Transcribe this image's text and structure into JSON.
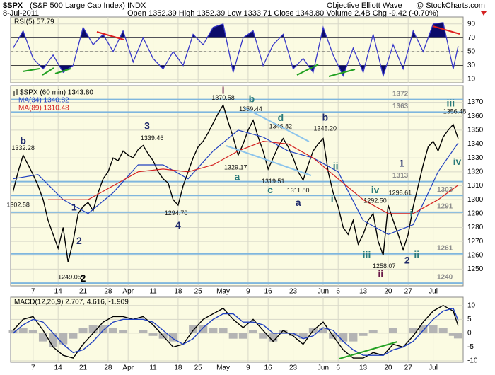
{
  "header": {
    "symbol": "$SPX",
    "name": "(S&P 500 Large Cap Index) INDX",
    "source": "Objective Elliott Wave",
    "site": "@ StockCharts.com",
    "date": "8-Jul-2011",
    "quote": "Open 1352.39 High 1352.39 Low 1333.71 Close 1343.80 Volume 2.4B Chg -9.42 (-0.70%)"
  },
  "chart_data": [
    {
      "type": "rsi",
      "title": "RSI(5) 57.79",
      "xlim": [
        -0.5,
        90
      ],
      "ylim": [
        5,
        100
      ],
      "yticks": [
        10,
        30,
        50,
        70,
        90
      ],
      "bands": [
        30,
        70
      ],
      "color": "#3838c8",
      "fill_color": "#0b0b6a",
      "x": [
        0,
        2,
        4,
        6,
        8,
        10,
        12,
        14,
        16,
        18,
        20,
        22,
        24,
        26,
        28,
        30,
        32,
        34,
        36,
        38,
        40,
        42,
        44,
        46,
        48,
        50,
        52,
        54,
        56,
        58,
        60,
        62,
        64,
        66,
        68,
        70,
        72,
        74,
        76,
        78,
        80,
        82,
        84,
        86,
        88,
        89
      ],
      "values": [
        55,
        80,
        40,
        25,
        45,
        20,
        30,
        85,
        60,
        75,
        50,
        80,
        35,
        70,
        40,
        25,
        50,
        30,
        75,
        60,
        85,
        90,
        20,
        70,
        80,
        30,
        60,
        75,
        25,
        40,
        20,
        85,
        45,
        15,
        55,
        20,
        75,
        15,
        60,
        25,
        80,
        50,
        90,
        92,
        25,
        57.79
      ]
    },
    {
      "type": "line",
      "xlim": [
        -0.5,
        90
      ],
      "ylim": [
        1238,
        1382
      ],
      "yticks": [
        1250,
        1260,
        1270,
        1280,
        1290,
        1300,
        1310,
        1320,
        1330,
        1340,
        1350,
        1360,
        1370
      ],
      "xticks": [
        {
          "value": 4,
          "label": "7"
        },
        {
          "value": 9,
          "label": "14"
        },
        {
          "value": 14,
          "label": "21"
        },
        {
          "value": 19,
          "label": "28"
        },
        {
          "value": 23,
          "label": "Apr"
        },
        {
          "value": 28,
          "label": "11"
        },
        {
          "value": 33,
          "label": "18"
        },
        {
          "value": 37,
          "label": "25"
        },
        {
          "value": 42,
          "label": "May"
        },
        {
          "value": 47,
          "label": "9"
        },
        {
          "value": 51,
          "label": "16"
        },
        {
          "value": 56,
          "label": "23"
        },
        {
          "value": 62,
          "label": "Jun"
        },
        {
          "value": 65,
          "label": "6"
        },
        {
          "value": 70,
          "label": "13"
        },
        {
          "value": 75,
          "label": "20"
        },
        {
          "value": 79,
          "label": "27"
        },
        {
          "value": 84,
          "label": "Jul"
        }
      ],
      "series": [
        {
          "name": "$SPX (60 min) 1343.80",
          "color": "#000000",
          "x": [
            0,
            1,
            2,
            3,
            4,
            5,
            6,
            7,
            8,
            9,
            10,
            11,
            12,
            13,
            14,
            15,
            16,
            17,
            18,
            19,
            20,
            21,
            22,
            23,
            24,
            25,
            26,
            27,
            28,
            29,
            30,
            31,
            32,
            33,
            34,
            35,
            36,
            37,
            38,
            39,
            40,
            41,
            42,
            43,
            44,
            45,
            46,
            47,
            48,
            49,
            50,
            51,
            52,
            53,
            54,
            55,
            56,
            57,
            58,
            59,
            60,
            61,
            62,
            63,
            64,
            65,
            66,
            67,
            68,
            69,
            70,
            71,
            72,
            73,
            74,
            75,
            76,
            77,
            78,
            79,
            80,
            81,
            82,
            83,
            84,
            85,
            86,
            87,
            88,
            89
          ],
          "values": [
            1306,
            1320,
            1332,
            1325,
            1318,
            1310,
            1300,
            1285,
            1275,
            1265,
            1280,
            1255,
            1270,
            1290,
            1295,
            1298,
            1292,
            1305,
            1315,
            1320,
            1330,
            1328,
            1335,
            1332,
            1330,
            1336,
            1339,
            1333,
            1328,
            1320,
            1315,
            1312,
            1300,
            1296,
            1310,
            1320,
            1330,
            1338,
            1342,
            1348,
            1355,
            1362,
            1368,
            1356,
            1345,
            1332,
            1340,
            1350,
            1357,
            1345,
            1335,
            1322,
            1330,
            1338,
            1344,
            1338,
            1330,
            1320,
            1314,
            1325,
            1335,
            1340,
            1344,
            1320,
            1305,
            1295,
            1280,
            1275,
            1285,
            1268,
            1275,
            1285,
            1290,
            1270,
            1260,
            1296,
            1285,
            1275,
            1264,
            1275,
            1295,
            1310,
            1325,
            1338,
            1342,
            1335,
            1345,
            1350,
            1354,
            1344
          ]
        },
        {
          "name": "MA(34) 1340.82",
          "color": "#2040c0",
          "x": [
            0,
            5,
            10,
            15,
            20,
            25,
            30,
            35,
            40,
            45,
            50,
            55,
            60,
            65,
            70,
            75,
            80,
            85,
            89
          ],
          "values": [
            1315,
            1318,
            1300,
            1290,
            1305,
            1325,
            1325,
            1315,
            1335,
            1350,
            1345,
            1335,
            1330,
            1320,
            1285,
            1275,
            1282,
            1320,
            1340.82
          ]
        },
        {
          "name": "MA(89) 1310.48",
          "color": "#d42020",
          "x": [
            7,
            10,
            15,
            20,
            25,
            30,
            35,
            40,
            45,
            50,
            55,
            60,
            65,
            70,
            75,
            80,
            85,
            89
          ],
          "values": [
            1300,
            1300,
            1300,
            1310,
            1320,
            1322,
            1320,
            1325,
            1335,
            1342,
            1340,
            1330,
            1315,
            1300,
            1290,
            1290,
            1300,
            1310.48
          ]
        }
      ],
      "levels": [
        1372,
        1363,
        1313,
        1303,
        1291,
        1261,
        1240
      ],
      "level_color": "#8c8c8c",
      "level_line_color": "#7fb6de",
      "annotations": [
        {
          "label": "b",
          "x": 2,
          "y": 1342,
          "color": "#1f2a6b"
        },
        {
          "label": "1332.28",
          "x": 2,
          "y": 1337
        },
        {
          "label": "1302.58",
          "x": 1,
          "y": 1296
        },
        {
          "label": "1249.05",
          "x": 11.3,
          "y": 1244
        },
        {
          "label": "2",
          "x": 14,
          "y": 1243,
          "color": "#000000"
        },
        {
          "label": "1",
          "x": 12.2,
          "y": 1294,
          "color": "#1f2a6b"
        },
        {
          "label": "2",
          "x": 13.2,
          "y": 1270,
          "color": "#1f2a6b"
        },
        {
          "label": "3",
          "x": 26.8,
          "y": 1352.5,
          "color": "#1f2a6b"
        },
        {
          "label": "1339.46",
          "x": 27.8,
          "y": 1344
        },
        {
          "label": "1294.70",
          "x": 32.6,
          "y": 1290
        },
        {
          "label": "4",
          "x": 33,
          "y": 1281,
          "color": "#1f2a6b"
        },
        {
          "label": "i",
          "x": 42,
          "y": 1378,
          "color": "#6a1a4a"
        },
        {
          "label": "1370.58",
          "x": 42,
          "y": 1373
        },
        {
          "label": "b",
          "x": 47.7,
          "y": 1372,
          "color": "#2a7a7a"
        },
        {
          "label": "1359.44",
          "x": 47.5,
          "y": 1365
        },
        {
          "label": "d",
          "x": 53.5,
          "y": 1358.5,
          "color": "#2a7a7a"
        },
        {
          "label": "1346.82",
          "x": 53.5,
          "y": 1352.5
        },
        {
          "label": "1329.17",
          "x": 44.5,
          "y": 1323
        },
        {
          "label": "a",
          "x": 44.8,
          "y": 1316,
          "color": "#2a7a7a"
        },
        {
          "label": "1319.51",
          "x": 52,
          "y": 1313
        },
        {
          "label": "c",
          "x": 51.4,
          "y": 1306.5,
          "color": "#2a7a7a"
        },
        {
          "label": "1311.80",
          "x": 57,
          "y": 1306.5
        },
        {
          "label": "a",
          "x": 57,
          "y": 1297.5,
          "color": "#1f2a6b"
        },
        {
          "label": "b",
          "x": 62.4,
          "y": 1358.7,
          "color": "#1f2a6b"
        },
        {
          "label": "1345.20",
          "x": 62.4,
          "y": 1351
        },
        {
          "label": "ii",
          "x": 64.5,
          "y": 1323.5,
          "color": "#2a7a7a"
        },
        {
          "label": "i",
          "x": 63.8,
          "y": 1300,
          "color": "#2a7a7a"
        },
        {
          "label": "iii",
          "x": 70.7,
          "y": 1259.7,
          "color": "#2a7a7a"
        },
        {
          "label": "ii",
          "x": 73.5,
          "y": 1246,
          "color": "#6a1a4a"
        },
        {
          "label": "1258.07",
          "x": 74.2,
          "y": 1252
        },
        {
          "label": "iv",
          "x": 72.4,
          "y": 1306.5,
          "color": "#2a7a7a"
        },
        {
          "label": "1292.50",
          "x": 72.4,
          "y": 1299
        },
        {
          "label": "1",
          "x": 77.7,
          "y": 1325.5,
          "color": "#1f2a6b"
        },
        {
          "label": "1298.61",
          "x": 77.4,
          "y": 1304.5
        },
        {
          "label": "i",
          "x": 79.6,
          "y": 1290,
          "color": "#2a7a7a"
        },
        {
          "label": "2",
          "x": 78.8,
          "y": 1256,
          "color": "#1f2a6b"
        },
        {
          "label": "ii",
          "x": 80.7,
          "y": 1260,
          "color": "#2a7a7a"
        },
        {
          "label": "iii",
          "x": 87.5,
          "y": 1369,
          "color": "#2a7a7a"
        },
        {
          "label": "1356.48",
          "x": 88.3,
          "y": 1363
        },
        {
          "label": "iv",
          "x": 88.8,
          "y": 1327,
          "color": "#2a7a7a"
        }
      ]
    },
    {
      "type": "macd",
      "title": "MACD(12,26,9) 2.707, 4.616, -1.909",
      "xlim": [
        -0.5,
        90
      ],
      "ylim": [
        -10.5,
        13
      ],
      "yticks": [
        -10,
        -5,
        0,
        5,
        10
      ],
      "xticks": [
        {
          "value": 4,
          "label": "7"
        },
        {
          "value": 9,
          "label": "14"
        },
        {
          "value": 14,
          "label": "21"
        },
        {
          "value": 19,
          "label": "28"
        },
        {
          "value": 23,
          "label": "Apr"
        },
        {
          "value": 28,
          "label": "11"
        },
        {
          "value": 33,
          "label": "18"
        },
        {
          "value": 37,
          "label": "25"
        },
        {
          "value": 42,
          "label": "May"
        },
        {
          "value": 47,
          "label": "9"
        },
        {
          "value": 51,
          "label": "16"
        },
        {
          "value": 56,
          "label": "23"
        },
        {
          "value": 62,
          "label": "Jun"
        },
        {
          "value": 65,
          "label": "6"
        },
        {
          "value": 70,
          "label": "13"
        },
        {
          "value": 75,
          "label": "20"
        },
        {
          "value": 79,
          "label": "27"
        },
        {
          "value": 84,
          "label": "Jul"
        }
      ],
      "x": [
        0,
        2,
        4,
        6,
        8,
        10,
        12,
        14,
        16,
        18,
        20,
        22,
        24,
        26,
        28,
        30,
        32,
        34,
        36,
        38,
        40,
        42,
        44,
        46,
        48,
        50,
        52,
        54,
        56,
        58,
        60,
        62,
        64,
        66,
        68,
        70,
        72,
        74,
        76,
        78,
        80,
        82,
        84,
        86,
        88,
        89
      ],
      "lines": [
        {
          "color": "#000000",
          "values": [
            1,
            5,
            6,
            1,
            -5,
            -8,
            -9,
            -4,
            0,
            4,
            6,
            6,
            5,
            6,
            3,
            -1,
            -5,
            -4,
            1,
            5,
            7,
            9,
            5,
            2,
            5,
            1,
            -3,
            1,
            -1,
            -4,
            1,
            4,
            -1,
            -6,
            -9,
            -9,
            -7,
            -8,
            -4,
            -5,
            -1,
            4,
            8,
            10,
            8,
            2.707
          ]
        },
        {
          "color": "#2040c0",
          "values": [
            0,
            3,
            5,
            4,
            0,
            -4,
            -7,
            -6,
            -3,
            1,
            4,
            5,
            5,
            5,
            4,
            1,
            -2,
            -4,
            -2,
            2,
            5,
            7,
            7,
            4,
            4,
            3,
            0,
            0,
            0,
            -2,
            -1,
            2,
            1,
            -3,
            -6,
            -8,
            -8,
            -8,
            -6,
            -5,
            -3,
            1,
            5,
            8,
            9,
            4.616
          ]
        }
      ],
      "histogram": {
        "color": "#b4b4b4",
        "values": [
          1,
          2,
          1,
          -3,
          -5,
          -4,
          -2,
          2,
          3,
          3,
          2,
          1,
          0,
          1,
          -1,
          -2,
          -3,
          0,
          3,
          3,
          2,
          2,
          -2,
          -2,
          1,
          -2,
          -3,
          1,
          -1,
          -2,
          2,
          2,
          -2,
          -3,
          -3,
          -1,
          1,
          0,
          2,
          0,
          2,
          3,
          3,
          2,
          -1,
          -1.909
        ]
      }
    }
  ]
}
